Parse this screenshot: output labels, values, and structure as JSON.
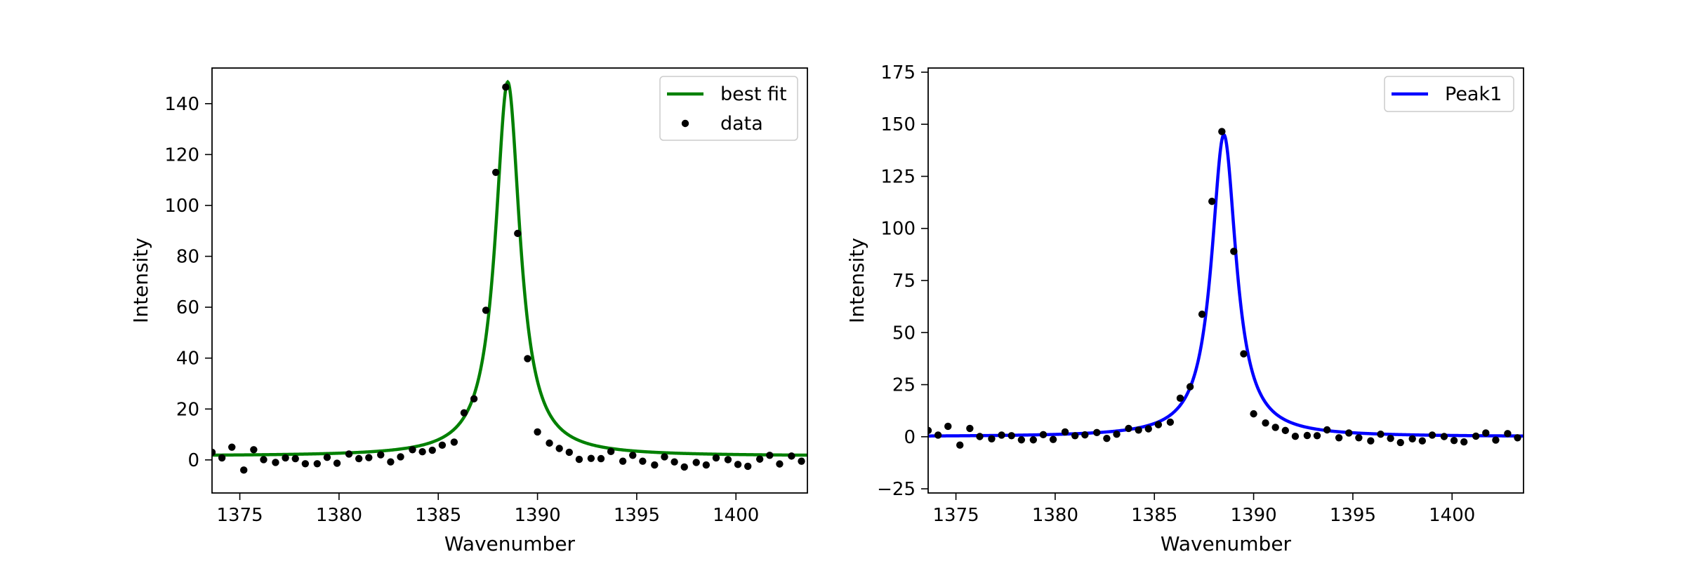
{
  "chart_data": [
    {
      "type": "line",
      "title": "",
      "xlabel": "Wavenumber",
      "ylabel": "Intensity",
      "xlim": [
        1373.6,
        1403.6
      ],
      "ylim": [
        -13,
        154
      ],
      "xticks": [
        1375,
        1380,
        1385,
        1390,
        1395,
        1400
      ],
      "yticks": [
        0,
        20,
        40,
        60,
        80,
        100,
        120,
        140
      ],
      "legend_position": "top-right",
      "colors": {
        "best_fit": "#008000",
        "data": "#000000"
      },
      "legend": [
        {
          "label": "best fit",
          "kind": "line",
          "color": "#008000"
        },
        {
          "label": "data",
          "kind": "marker",
          "color": "#000000"
        }
      ],
      "fit_curve": {
        "name": "best fit",
        "model": "lorentzian",
        "center": 1388.5,
        "fwhm": 1.5,
        "amplitude": 147,
        "baseline": 1.5
      },
      "data_points": [
        [
          1373.6,
          3.0
        ],
        [
          1374.1,
          0.8
        ],
        [
          1374.6,
          5.0
        ],
        [
          1375.2,
          -4.0
        ],
        [
          1375.7,
          4.0
        ],
        [
          1376.2,
          0.1
        ],
        [
          1376.8,
          -1.0
        ],
        [
          1377.3,
          0.8
        ],
        [
          1377.8,
          0.5
        ],
        [
          1378.3,
          -1.5
        ],
        [
          1378.9,
          -1.5
        ],
        [
          1379.4,
          1.0
        ],
        [
          1379.9,
          -1.3
        ],
        [
          1380.5,
          2.3
        ],
        [
          1381.0,
          0.5
        ],
        [
          1381.5,
          0.9
        ],
        [
          1382.1,
          2.0
        ],
        [
          1382.6,
          -0.8
        ],
        [
          1383.1,
          1.2
        ],
        [
          1383.7,
          4.0
        ],
        [
          1384.2,
          3.2
        ],
        [
          1384.7,
          3.8
        ],
        [
          1385.2,
          5.8
        ],
        [
          1385.8,
          7.0
        ],
        [
          1386.3,
          18.5
        ],
        [
          1386.8,
          24.0
        ],
        [
          1387.4,
          58.8
        ],
        [
          1387.9,
          113.0
        ],
        [
          1388.4,
          146.5
        ],
        [
          1389.0,
          89.0
        ],
        [
          1389.5,
          39.8
        ],
        [
          1390.0,
          11.0
        ],
        [
          1390.6,
          6.6
        ],
        [
          1391.1,
          4.5
        ],
        [
          1391.6,
          3.0
        ],
        [
          1392.1,
          0.2
        ],
        [
          1392.7,
          0.6
        ],
        [
          1393.2,
          0.5
        ],
        [
          1393.7,
          3.3
        ],
        [
          1394.3,
          -0.5
        ],
        [
          1394.8,
          1.8
        ],
        [
          1395.3,
          -0.5
        ],
        [
          1395.9,
          -2.0
        ],
        [
          1396.4,
          1.2
        ],
        [
          1396.9,
          -0.8
        ],
        [
          1397.4,
          -2.8
        ],
        [
          1398.0,
          -1.0
        ],
        [
          1398.5,
          -2.0
        ],
        [
          1399.0,
          0.8
        ],
        [
          1399.6,
          0.1
        ],
        [
          1400.1,
          -1.8
        ],
        [
          1400.6,
          -2.5
        ],
        [
          1401.2,
          0.3
        ],
        [
          1401.7,
          1.8
        ],
        [
          1402.2,
          -1.6
        ],
        [
          1402.8,
          1.5
        ],
        [
          1403.3,
          -0.5
        ]
      ]
    },
    {
      "type": "line",
      "title": "",
      "xlabel": "Wavenumber",
      "ylabel": "Intensity",
      "xlim": [
        1373.6,
        1403.6
      ],
      "ylim": [
        -27,
        177
      ],
      "xticks": [
        1375,
        1380,
        1385,
        1390,
        1395,
        1400
      ],
      "yticks": [
        -25,
        0,
        25,
        50,
        75,
        100,
        125,
        150,
        175
      ],
      "legend_position": "top-right",
      "colors": {
        "peak1": "#0000ff",
        "data": "#000000"
      },
      "legend": [
        {
          "label": "Peak1",
          "kind": "line",
          "color": "#0000ff"
        }
      ],
      "fit_curve": {
        "name": "Peak1",
        "model": "lorentzian",
        "center": 1388.5,
        "fwhm": 1.5,
        "amplitude": 145,
        "baseline": 0
      },
      "data_points": "same as panel 1"
    }
  ]
}
